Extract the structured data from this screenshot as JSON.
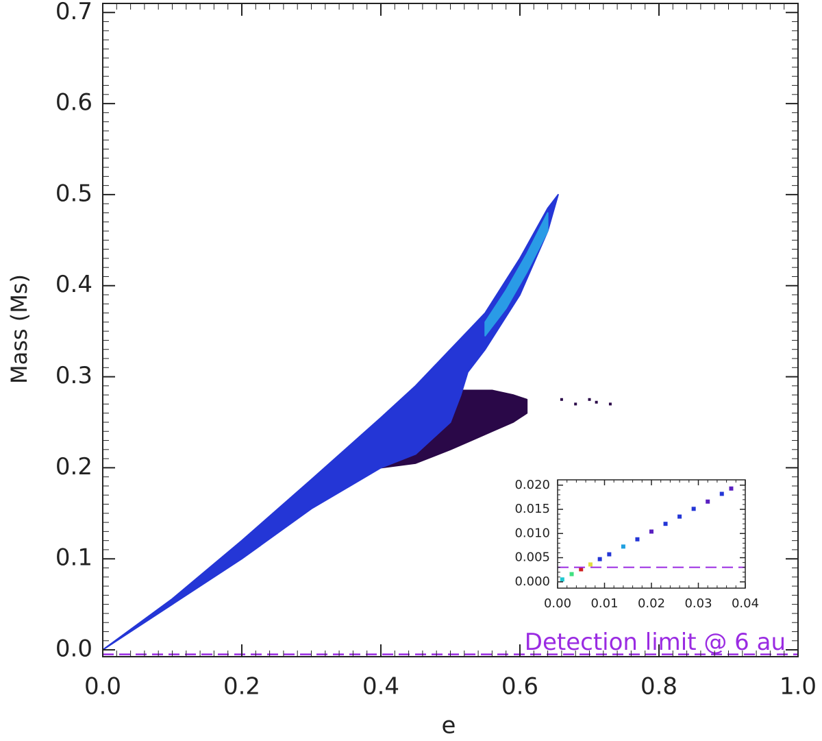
{
  "chart_data": [
    {
      "type": "density",
      "x_label": "e",
      "y_label": "Mass (Ms)",
      "xlim": [
        0,
        1
      ],
      "ylim": [
        -0.0075,
        0.71
      ],
      "xticks": [
        {
          "value": 0,
          "label": "0.0"
        },
        0.2,
        0.4,
        0.6,
        0.8,
        {
          "value": 1,
          "label": "1.0"
        }
      ],
      "yticks": [
        {
          "value": 0,
          "label": "0.0"
        },
        0.1,
        0.2,
        0.3,
        0.4,
        0.5,
        0.6,
        0.7
      ],
      "minor_ticks": 10,
      "series": [
        {
          "color": "#2a0848",
          "x": [
            0.4,
            0.45,
            0.5,
            0.53,
            0.56,
            0.59,
            0.61
          ],
          "values": [
            0.23,
            0.26,
            0.285,
            0.285,
            0.285,
            0.28,
            0.275
          ],
          "lower": [
            0.2,
            0.205,
            0.22,
            0.23,
            0.24,
            0.25,
            0.26
          ]
        },
        {
          "color": "#2436d6",
          "x": [
            0,
            0.1,
            0.2,
            0.3,
            0.4,
            0.45,
            0.5,
            0.515,
            0.525,
            0.55,
            0.6,
            0.64,
            0.655
          ],
          "values": [
            0,
            0.056,
            0.12,
            0.187,
            0.255,
            0.29,
            0.33,
            0.342,
            0.35,
            0.37,
            0.43,
            0.485,
            0.5
          ],
          "lower": [
            0,
            0.05,
            0.1,
            0.155,
            0.2,
            0.215,
            0.25,
            0.28,
            0.305,
            0.33,
            0.39,
            0.46,
            0.5
          ]
        },
        {
          "color": "#2a9be6",
          "x": [
            0.55,
            0.58,
            0.61,
            0.64
          ],
          "values": [
            0.36,
            0.395,
            0.435,
            0.48
          ],
          "lower": [
            0.345,
            0.375,
            0.415,
            0.46
          ]
        }
      ],
      "points": {
        "color": "#2a0848",
        "x": [
          0.66,
          0.68,
          0.7,
          0.71,
          0.73
        ],
        "values": [
          0.275,
          0.27,
          0.275,
          0.272,
          0.27
        ]
      },
      "hline": {
        "value": -0.005,
        "color": "#9a2be2",
        "dashed": true,
        "label": "Detection limit @ 6 au"
      }
    },
    {
      "type": "scatter",
      "xlim": [
        0,
        0.04
      ],
      "ylim": [
        -0.0013,
        0.0211
      ],
      "xticks": [
        {
          "value": 0,
          "label": "0.00"
        },
        {
          "value": 0.01,
          "label": "0.01"
        },
        {
          "value": 0.02,
          "label": "0.02"
        },
        {
          "value": 0.03,
          "label": "0.03"
        },
        {
          "value": 0.04,
          "label": "0.04"
        }
      ],
      "yticks": [
        {
          "value": 0,
          "label": "0.000"
        },
        {
          "value": 0.005,
          "label": "0.005"
        },
        {
          "value": 0.01,
          "label": "0.010"
        },
        {
          "value": 0.015,
          "label": "0.015"
        },
        {
          "value": 0.02,
          "label": "0.020"
        }
      ],
      "minor_ticks": 5,
      "x": [
        0.001,
        0.003,
        0.005,
        0.007,
        0.009,
        0.011,
        0.014,
        0.017,
        0.02,
        0.023,
        0.026,
        0.029,
        0.032,
        0.035,
        0.037
      ],
      "values": [
        0.0005,
        0.0016,
        0.0026,
        0.0036,
        0.0047,
        0.0057,
        0.0073,
        0.0088,
        0.0104,
        0.012,
        0.0135,
        0.0151,
        0.0166,
        0.0182,
        0.0193
      ],
      "colors": [
        "#20c8d0",
        "#40e080",
        "#d02020",
        "#e0e040",
        "#2436d6",
        "#2436d6",
        "#20a0e0",
        "#2436d6",
        "#5a20c0",
        "#2436d6",
        "#2436d6",
        "#2436d6",
        "#5a20c0",
        "#2436d6",
        "#5a20c0"
      ],
      "hline": {
        "value": 0.003,
        "color": "#9a2be2",
        "dashed": true
      }
    }
  ]
}
